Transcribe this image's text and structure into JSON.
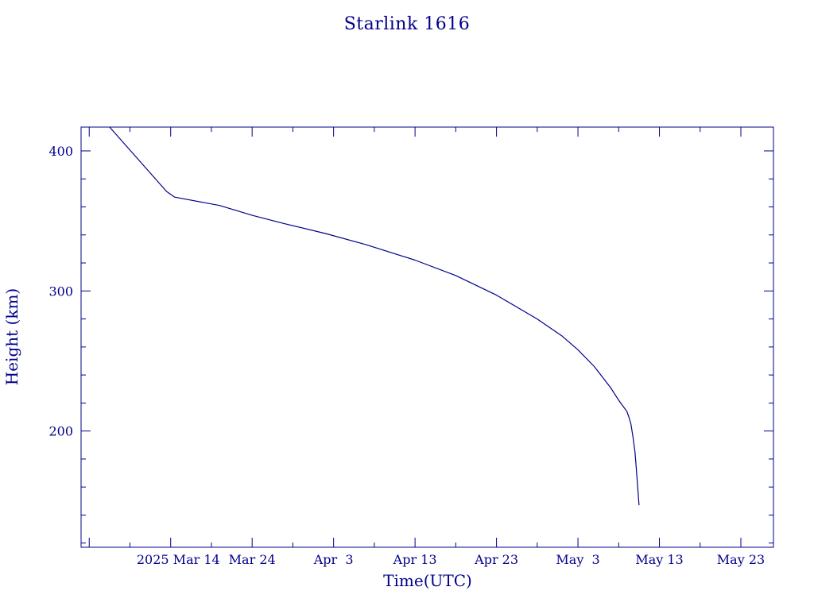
{
  "chart_data": {
    "type": "line",
    "title": "Starlink 1616",
    "xlabel": "Time(UTC)",
    "ylabel": "Height (km)",
    "x_axis_type": "date",
    "xlim": [
      "2025-03-03",
      "2025-05-27"
    ],
    "ylim": [
      117,
      417
    ],
    "x_ticks": [
      {
        "date": "2025-03-14",
        "label": "2025 Mar 14"
      },
      {
        "date": "2025-03-24",
        "label": "Mar 24"
      },
      {
        "date": "2025-04-03",
        "label": "Apr  3"
      },
      {
        "date": "2025-04-13",
        "label": "Apr 13"
      },
      {
        "date": "2025-04-23",
        "label": "Apr 23"
      },
      {
        "date": "2025-05-03",
        "label": "May  3"
      },
      {
        "date": "2025-05-13",
        "label": "May 13"
      },
      {
        "date": "2025-05-23",
        "label": "May 23"
      }
    ],
    "y_ticks": [
      200,
      300,
      400
    ],
    "y_minor_step": 20,
    "x_minor_step_days": 5,
    "grid": false,
    "series": [
      {
        "color": "#00008b",
        "x": [
          "2025-03-06 12:00",
          "2025-03-13 12:00",
          "2025-03-14 12:00",
          "2025-03-20",
          "2025-03-24",
          "2025-03-28",
          "2025-04-02",
          "2025-04-07",
          "2025-04-13",
          "2025-04-18",
          "2025-04-23",
          "2025-04-28",
          "2025-05-01",
          "2025-05-03",
          "2025-05-05",
          "2025-05-07",
          "2025-05-08",
          "2025-05-09",
          "2025-05-09 06:00",
          "2025-05-09 12:00",
          "2025-05-09 18:00",
          "2025-05-10",
          "2025-05-10 04:00",
          "2025-05-10 08:00",
          "2025-05-10 12:00"
        ],
        "y": [
          417,
          371,
          367,
          361,
          354,
          348,
          341,
          333,
          322,
          311,
          297,
          280,
          268,
          258,
          246,
          231,
          222,
          214,
          210,
          205,
          196,
          185,
          173,
          160,
          147
        ]
      }
    ]
  }
}
